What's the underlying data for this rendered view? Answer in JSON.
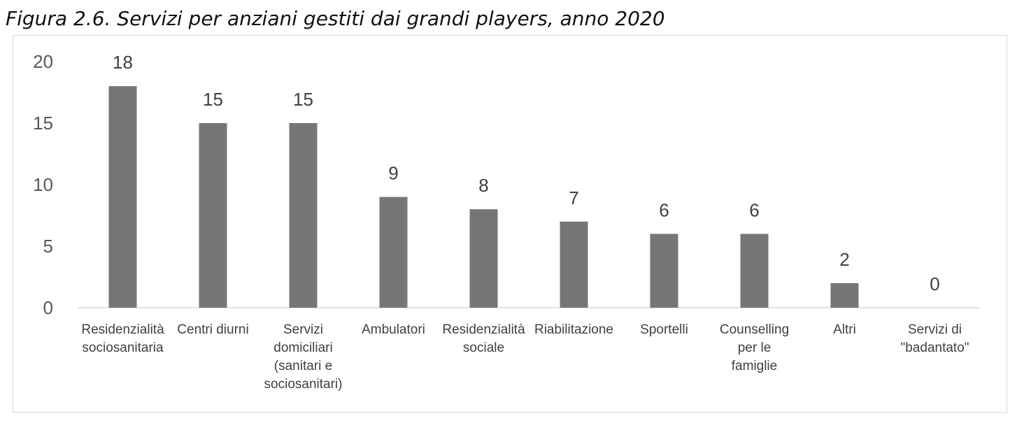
{
  "figure": {
    "title": "Figura 2.6. Servizi per anziani gestiti dai grandi players, anno 2020"
  },
  "chart_data": {
    "type": "bar",
    "title": "",
    "xlabel": "",
    "ylabel": "",
    "ylim": [
      0,
      20
    ],
    "yticks": [
      "0",
      "5",
      "10",
      "15",
      "20"
    ],
    "grid": false,
    "legend": "none",
    "bar_color": "#767676",
    "categories": [
      [
        "Residenzialità",
        "sociosanitaria"
      ],
      [
        "Centri diurni"
      ],
      [
        "Servizi",
        "domiciliari",
        "(sanitari e",
        "sociosanitari)"
      ],
      [
        "Ambulatori"
      ],
      [
        "Residenzialità",
        "sociale"
      ],
      [
        "Riabilitazione"
      ],
      [
        "Sportelli"
      ],
      [
        "Counselling",
        "per le",
        "famiglie"
      ],
      [
        "Altri"
      ],
      [
        "Servizi di",
        "\"badantato\""
      ]
    ],
    "values": [
      18,
      15,
      15,
      9,
      8,
      7,
      6,
      6,
      2,
      0
    ],
    "data_labels": [
      "18",
      "15",
      "15",
      "9",
      "8",
      "7",
      "6",
      "6",
      "2",
      "0"
    ]
  }
}
